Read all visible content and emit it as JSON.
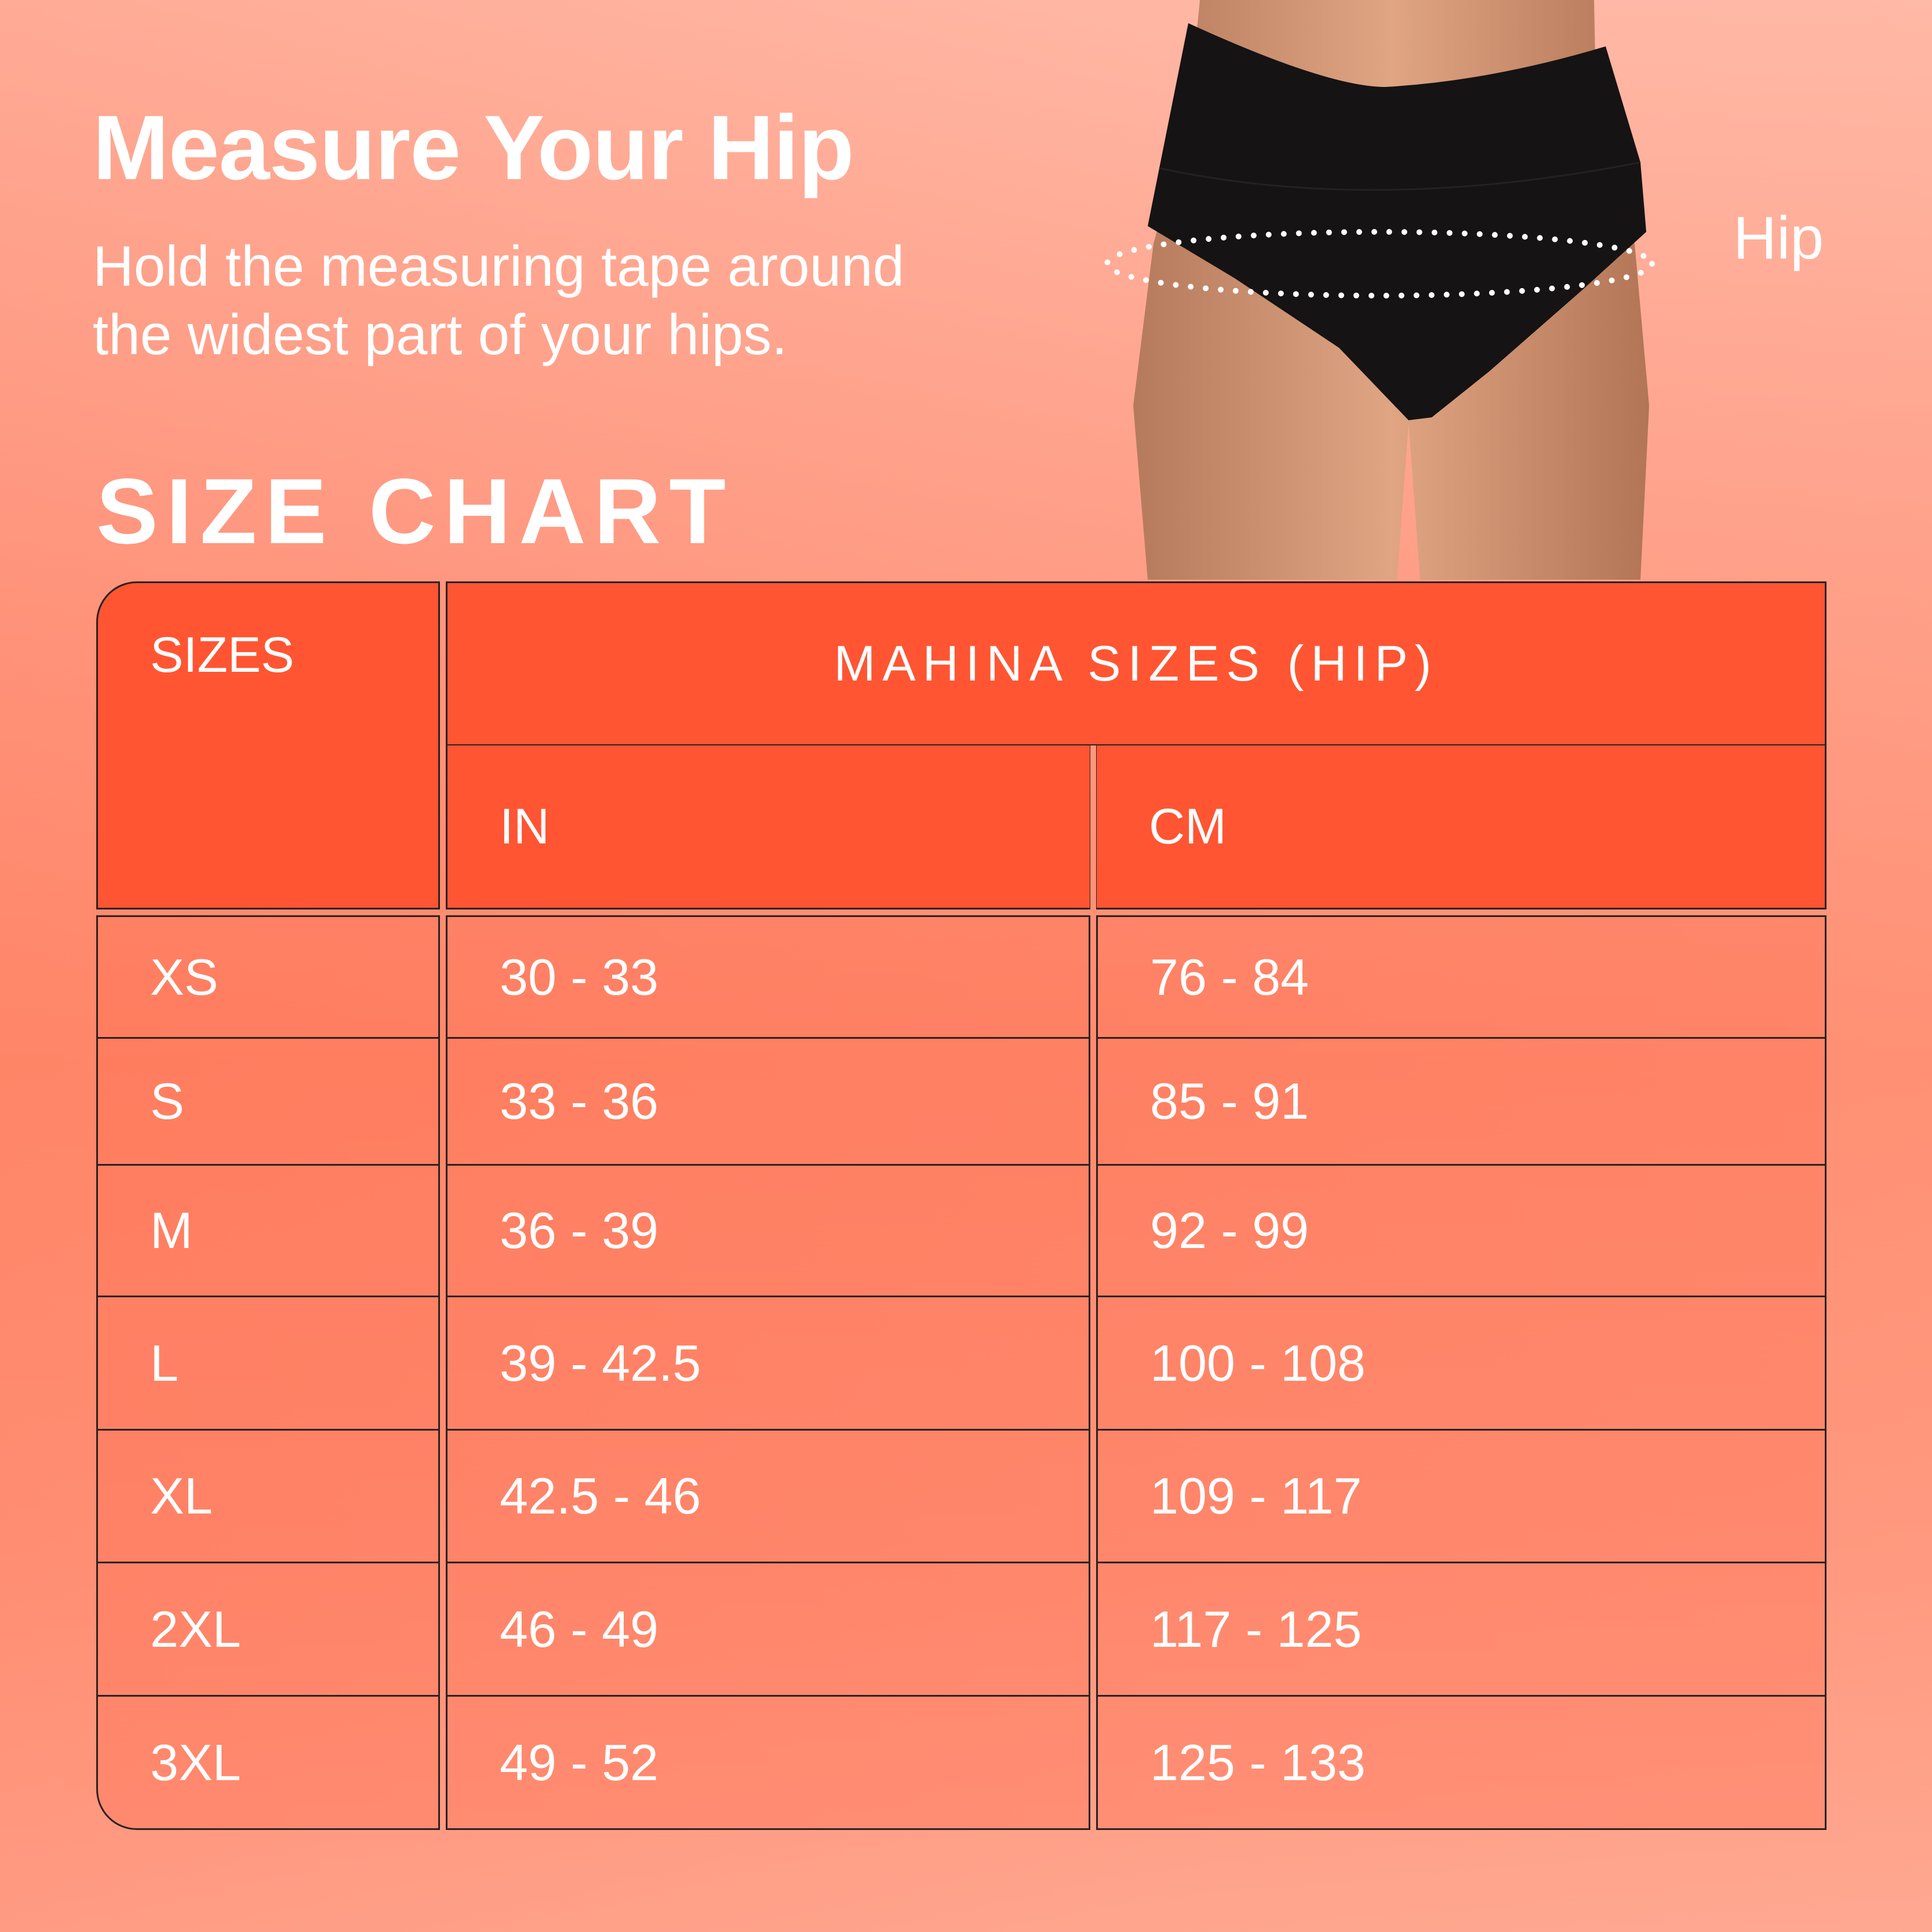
{
  "header": {
    "title": "Measure Your Hip",
    "instructions": [
      "Hold the measuring tape around",
      "the widest part of your hips."
    ],
    "hip_label": "Hip"
  },
  "chart_title": "SIZE CHART",
  "table": {
    "headers": {
      "sizes": "SIZES",
      "group": "MAHINA SIZES (HIP)",
      "in": "IN",
      "cm": "CM"
    },
    "rows": [
      {
        "size": "XS",
        "in": "30 - 33",
        "cm": "76 - 84"
      },
      {
        "size": "S",
        "in": "33 - 36",
        "cm": "85 - 91"
      },
      {
        "size": "M",
        "in": "36 - 39",
        "cm": "92 - 99"
      },
      {
        "size": "L",
        "in": "39 - 42.5",
        "cm": "100 - 108"
      },
      {
        "size": "XL",
        "in": "42.5 - 46",
        "cm": "109 - 117"
      },
      {
        "size": "2XL",
        "in": "46 - 49",
        "cm": "117 - 125"
      },
      {
        "size": "3XL",
        "in": "49 - 52",
        "cm": "125 - 133"
      }
    ]
  },
  "colors": {
    "header_bg": "#ff5533",
    "border": "#2a2220",
    "text": "#ffffff"
  }
}
